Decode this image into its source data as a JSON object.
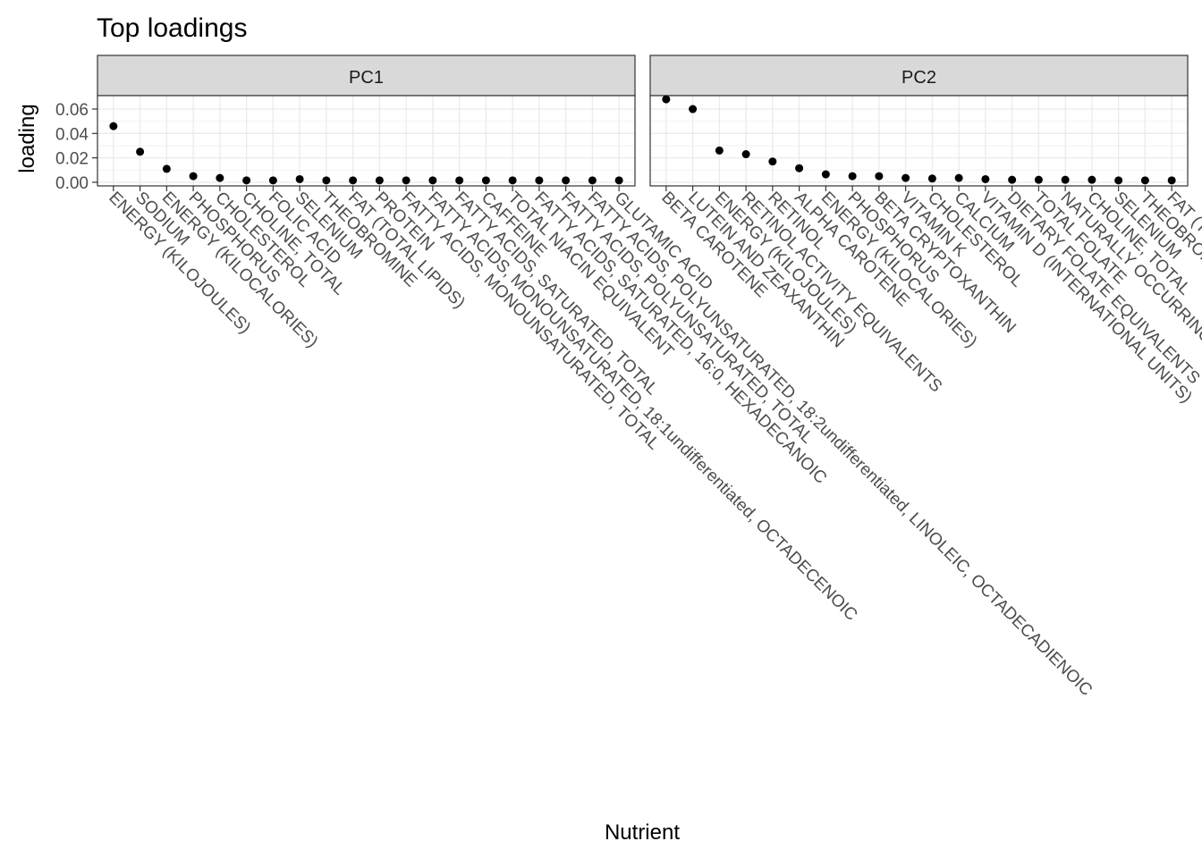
{
  "chart_data": {
    "type": "scatter",
    "title": "Top loadings",
    "xlabel": "Nutrient",
    "ylabel": "loading",
    "ylim": [
      -0.003,
      0.071
    ],
    "yticks": [
      "0.00",
      "0.02",
      "0.04",
      "0.06"
    ],
    "grid": true,
    "facets": [
      {
        "name": "PC1",
        "categories": [
          "ENERGY (KILOJOULES)",
          "SODIUM",
          "ENERGY (KILOCALORIES)",
          "PHOSPHORUS",
          "CHOLESTEROL",
          "CHOLINE, TOTAL",
          "FOLIC ACID",
          "SELENIUM",
          "THEOBROMINE",
          "FAT (TOTAL LIPIDS)",
          "PROTEIN",
          "FATTY ACIDS, MONOUNSATURATED, TOTAL",
          "FATTY ACIDS, MONOUNSATURATED, 18:1undifferentiated, OCTADECENOIC",
          "FATTY ACIDS, SATURATED, TOTAL",
          "CAFFEINE",
          "TOTAL NIACIN EQUIVALENT",
          "FATTY ACIDS, SATURATED, 16:0, HEXADECANOIC",
          "FATTY ACIDS, POLYUNSATURATED, TOTAL",
          "FATTY ACIDS, POLYUNSATURATED, 18:2undifferentiated, LINOLEIC, OCTADECADIENOIC",
          "GLUTAMIC ACID"
        ],
        "values": [
          0.046,
          0.025,
          0.011,
          0.005,
          0.0035,
          0.0015,
          0.0015,
          0.0025,
          0.0015,
          0.0015,
          0.0015,
          0.0015,
          0.0015,
          0.0015,
          0.0015,
          0.0015,
          0.0015,
          0.0015,
          0.0015,
          0.0015
        ]
      },
      {
        "name": "PC2",
        "categories": [
          "BETA CAROTENE",
          "LUTEIN AND ZEAXANTHIN",
          "ENERGY (KILOJOULES)",
          "RETINOL ACTIVITY EQUIVALENTS",
          "RETINOL",
          "ALPHA CAROTENE",
          "ENERGY (KILOCALORIES)",
          "PHOSPHORUS",
          "BETA CRYPTOXANTHIN",
          "VITAMIN K",
          "CHOLESTEROL",
          "CALCIUM",
          "VITAMIN D (INTERNATIONAL UNITS)",
          "DIETARY FOLATE EQUIVALENTS",
          "TOTAL FOLATE",
          "NATURALLY OCCURRING FOLATE",
          "CHOLINE, TOTAL",
          "SELENIUM",
          "THEOBROMINE",
          "FAT (TOTAL LIPIDS)"
        ],
        "values": [
          0.068,
          0.06,
          0.026,
          0.023,
          0.017,
          0.0115,
          0.0065,
          0.005,
          0.005,
          0.0035,
          0.003,
          0.0035,
          0.0025,
          0.002,
          0.002,
          0.002,
          0.002,
          0.0015,
          0.0015,
          0.0015
        ]
      }
    ]
  }
}
